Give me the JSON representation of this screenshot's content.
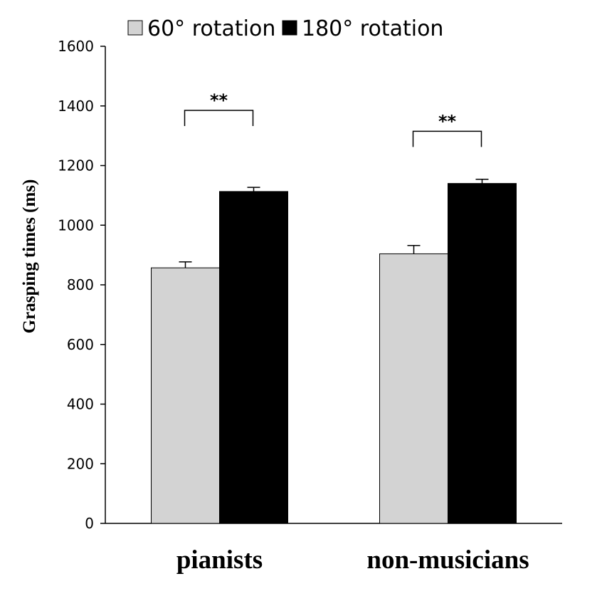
{
  "chart_data": {
    "type": "bar",
    "title": "",
    "xlabel": "",
    "ylabel": "Grasping times (ms)",
    "categories": [
      "pianists",
      "non-musicians"
    ],
    "series": [
      {
        "name": "60° rotation",
        "color": "#d3d3d3",
        "values": [
          857,
          904
        ],
        "errors": [
          20,
          28
        ]
      },
      {
        "name": "180° rotation",
        "color": "#000000",
        "values": [
          1113,
          1140
        ],
        "errors": [
          14,
          14
        ]
      }
    ],
    "ylim": [
      0,
      1600
    ],
    "yticks": [
      "0",
      "200",
      "400",
      "600",
      "800",
      "1000",
      "1200",
      "1400",
      "1600"
    ],
    "grid": false,
    "legend_position": "top",
    "significance": [
      {
        "category": "pianists",
        "label": "**",
        "level": 1385
      },
      {
        "category": "non-musicians",
        "label": "**",
        "level": 1315
      }
    ]
  }
}
